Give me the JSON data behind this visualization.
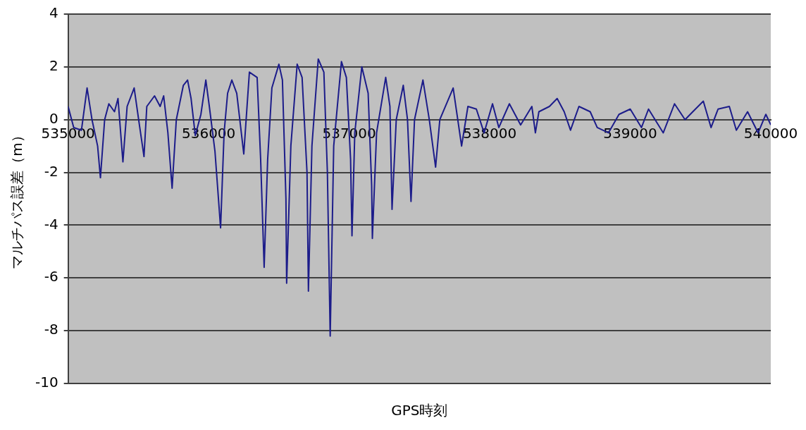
{
  "chart_data": {
    "type": "line",
    "xlabel": "GPS時刻",
    "ylabel": "マルチパス誤差（m）",
    "x": [
      535000,
      535040,
      535095,
      535135,
      535170,
      535210,
      535230,
      535260,
      535290,
      535330,
      535355,
      535390,
      535420,
      535470,
      535510,
      535540,
      535560,
      535615,
      535655,
      535680,
      535710,
      535740,
      535770,
      535820,
      535850,
      535875,
      535905,
      535945,
      535980,
      536005,
      536045,
      536085,
      536110,
      536135,
      536165,
      536200,
      536250,
      536290,
      536345,
      536370,
      536395,
      536420,
      536450,
      536500,
      536525,
      536550,
      536555,
      536585,
      536630,
      536665,
      536700,
      536710,
      536735,
      536780,
      536820,
      536845,
      536865,
      536890,
      536945,
      536980,
      537010,
      537020,
      537040,
      537090,
      537135,
      537160,
      537165,
      537195,
      537260,
      537290,
      537305,
      537335,
      537385,
      537415,
      537440,
      537465,
      537525,
      537570,
      537615,
      537645,
      537740,
      537800,
      537845,
      537905,
      537960,
      538020,
      538065,
      538140,
      538220,
      538300,
      538325,
      538350,
      538425,
      538480,
      538530,
      538575,
      538635,
      538715,
      538765,
      538845,
      538920,
      539000,
      539080,
      539130,
      539235,
      539315,
      539390,
      539445,
      539520,
      539575,
      539625,
      539705,
      539755,
      539835,
      539910,
      539965,
      540000
    ],
    "values": [
      0.5,
      -0.3,
      -0.4,
      1.2,
      0,
      -1.0,
      -2.2,
      0,
      0.6,
      0.3,
      0.8,
      -1.6,
      0.5,
      1.2,
      -0.3,
      -1.4,
      0.5,
      0.9,
      0.5,
      0.9,
      -0.5,
      -2.6,
      0,
      1.3,
      1.5,
      0.8,
      -0.6,
      0.2,
      1.5,
      0.5,
      -1.2,
      -4.1,
      -0.5,
      1.0,
      1.5,
      1.0,
      -1.3,
      1.8,
      1.6,
      -1.5,
      -5.6,
      -1.5,
      1.2,
      2.1,
      1.5,
      -3,
      -6.2,
      -1,
      2.1,
      1.6,
      -2,
      -6.5,
      -1,
      2.3,
      1.8,
      -2,
      -8.2,
      -1,
      2.2,
      1.6,
      -1.5,
      -4.4,
      -0.5,
      2.0,
      1.0,
      -2.5,
      -4.5,
      -0.5,
      1.6,
      0.5,
      -3.4,
      0,
      1.3,
      0,
      -3.1,
      0,
      1.5,
      0,
      -1.8,
      0,
      1.2,
      -1.0,
      0.5,
      0.4,
      -0.5,
      0.6,
      -0.3,
      0.6,
      -0.2,
      0.5,
      -0.5,
      0.3,
      0.5,
      0.8,
      0.3,
      -0.4,
      0.5,
      0.3,
      -0.3,
      -0.5,
      0.2,
      0.4,
      -0.3,
      0.4,
      -0.5,
      0.6,
      0,
      0.3,
      0.7,
      -0.3,
      0.4,
      0.5,
      -0.4,
      0.3,
      -0.5,
      0.2,
      -0.2
    ],
    "color": "#1c1c8a",
    "xlim": [
      535000,
      540000
    ],
    "xticks": [
      535000,
      536000,
      537000,
      538000,
      539000,
      540000
    ],
    "ylim": [
      -10,
      4
    ],
    "yticks": [
      -10,
      -8,
      -6,
      -4,
      -2,
      0,
      2,
      4
    ],
    "grid": "y",
    "marker": "none",
    "line_style": "solid"
  }
}
